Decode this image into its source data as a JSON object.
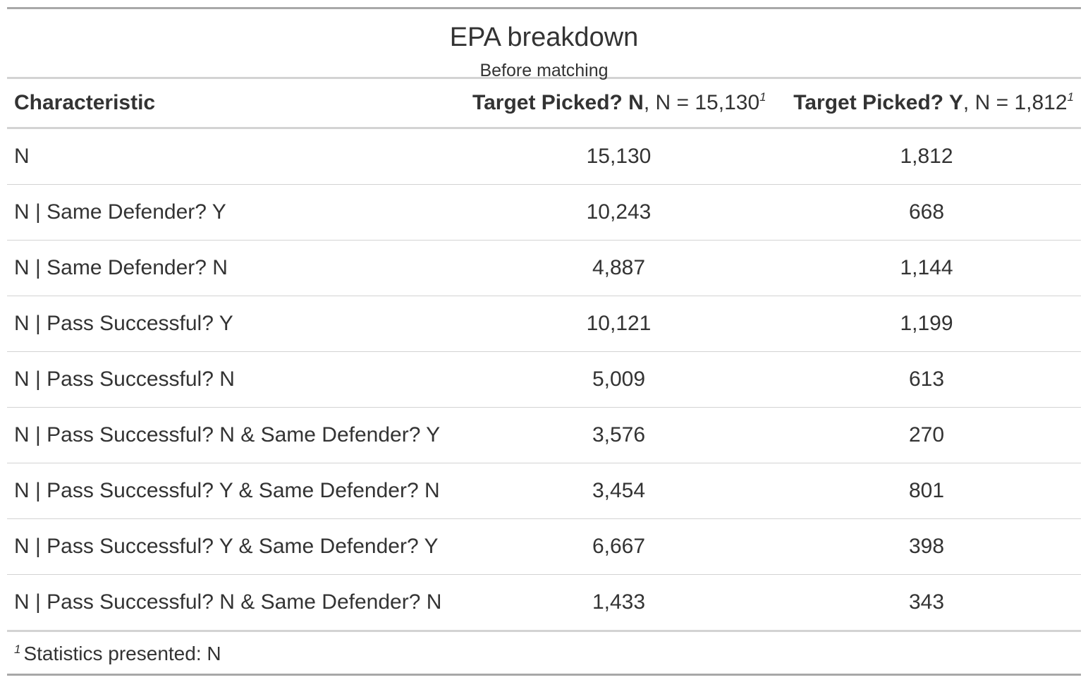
{
  "header": {
    "title": "EPA breakdown",
    "subtitle": "Before matching"
  },
  "columns": [
    {
      "bold": "Characteristic",
      "rest": "",
      "marker": ""
    },
    {
      "bold": "Target Picked? N",
      "rest": ", N = 15,130",
      "marker": "1"
    },
    {
      "bold": "Target Picked? Y",
      "rest": ", N = 1,812",
      "marker": "1"
    }
  ],
  "rows": [
    {
      "label": "N",
      "n": "15,130",
      "y": "1,812"
    },
    {
      "label": "N | Same Defender? Y",
      "n": "10,243",
      "y": "668"
    },
    {
      "label": "N | Same Defender? N",
      "n": "4,887",
      "y": "1,144"
    },
    {
      "label": "N | Pass Successful? Y",
      "n": "10,121",
      "y": "1,199"
    },
    {
      "label": "N | Pass Successful? N",
      "n": "5,009",
      "y": "613"
    },
    {
      "label": "N | Pass Successful? N & Same Defender? Y",
      "n": "3,576",
      "y": "270"
    },
    {
      "label": "N | Pass Successful? Y & Same Defender? N",
      "n": "3,454",
      "y": "801"
    },
    {
      "label": "N | Pass Successful? Y & Same Defender? Y",
      "n": "6,667",
      "y": "398"
    },
    {
      "label": "N | Pass Successful? N & Same Defender? N",
      "n": "1,433",
      "y": "343"
    }
  ],
  "footnote": {
    "marker": "1",
    "text": "Statistics presented: N"
  }
}
